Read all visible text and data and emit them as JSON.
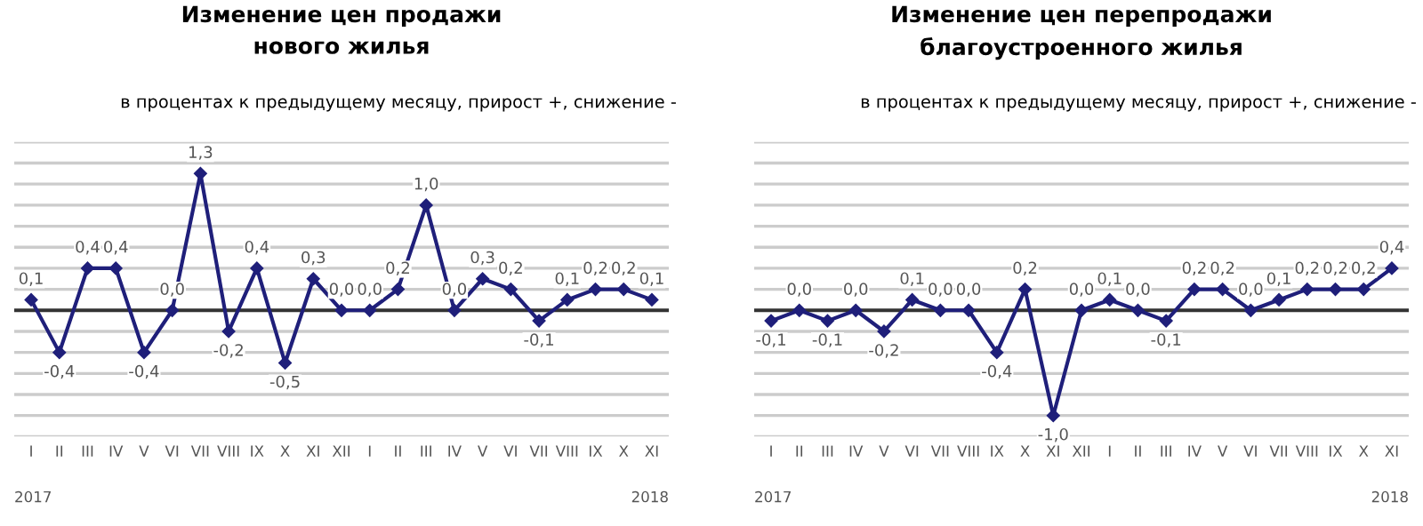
{
  "chart_data": [
    {
      "type": "line",
      "title": "Изменение цен продажи\nнового жилья",
      "subtitle": "в процентах к предыдущему месяцу, прирост +, снижение -",
      "categories": [
        "I",
        "II",
        "III",
        "IV",
        "V",
        "VI",
        "VII",
        "VIII",
        "IX",
        "X",
        "XI",
        "XII",
        "I",
        "II",
        "III",
        "IV",
        "V",
        "VI",
        "VII",
        "VIII",
        "IX",
        "X",
        "XI"
      ],
      "series": [
        {
          "color": "#1f1f7a",
          "values": [
            0.1,
            -0.4,
            0.4,
            0.4,
            -0.4,
            0.0,
            1.3,
            -0.2,
            0.4,
            -0.5,
            0.3,
            0.0,
            0.0,
            0.2,
            1.0,
            0.0,
            0.3,
            0.2,
            -0.1,
            0.1,
            0.2,
            0.2,
            0.1
          ],
          "value_labels": [
            "0,1",
            "-0,4",
            "0,4",
            "0,4",
            "-0,4",
            "0,0",
            "1,3",
            "-0,2",
            "0,4",
            "-0,5",
            "0,3",
            "0,0",
            "0,0",
            "0,2",
            "1,0",
            "0,0",
            "0,3",
            "0,2",
            "-0,1",
            "0,1",
            "0,2",
            "0,2",
            "0,1"
          ]
        }
      ],
      "ylim": [
        -1.2,
        1.6
      ],
      "yticks": [
        {
          "value": -1.2,
          "label": null
        },
        {
          "value": -1.0,
          "label": null
        },
        {
          "value": -0.8,
          "label": null
        },
        {
          "value": -0.6,
          "label": null
        },
        {
          "value": -0.4,
          "label": null
        },
        {
          "value": -0.2,
          "label": null
        },
        {
          "value": 0.2,
          "label": null
        },
        {
          "value": 0.4,
          "label": null
        },
        {
          "value": 0.6,
          "label": null
        },
        {
          "value": 0.8,
          "label": null
        },
        {
          "value": 1.0,
          "label": null
        },
        {
          "value": 1.2,
          "label": null
        },
        {
          "value": 1.4,
          "label": null
        },
        {
          "value": 1.6,
          "label": null
        }
      ],
      "tick_labels": "x",
      "grid": "y",
      "marker": "diamond",
      "line_style": "solid",
      "ref_lines": [
        {
          "axis": "y",
          "value": 0,
          "color": "#333333"
        }
      ],
      "annotations": [
        "2017",
        "2018"
      ]
    },
    {
      "type": "line",
      "title": "Изменение цен перепродажи\nблагоустроенного жилья",
      "subtitle": "в процентах к предыдущему месяцу, прирост +, снижение -",
      "categories": [
        "I",
        "II",
        "III",
        "IV",
        "V",
        "VI",
        "VII",
        "VIII",
        "IX",
        "X",
        "XI",
        "XII",
        "I",
        "II",
        "III",
        "IV",
        "V",
        "VI",
        "VII",
        "VIII",
        "IX",
        "X",
        "XI"
      ],
      "series": [
        {
          "color": "#1f1f7a",
          "values": [
            -0.1,
            0.0,
            -0.1,
            0.0,
            -0.2,
            0.1,
            0.0,
            0.0,
            -0.4,
            0.2,
            -1.0,
            0.0,
            0.1,
            0.0,
            -0.1,
            0.2,
            0.2,
            0.0,
            0.1,
            0.2,
            0.2,
            0.2,
            0.4
          ],
          "value_labels": [
            "-0,1",
            "0,0",
            "-0,1",
            "0,0",
            "-0,2",
            "0,1",
            "0,0",
            "0,0",
            "-0,4",
            "0,2",
            "-1,0",
            "0,0",
            "0,1",
            "0,0",
            "-0,1",
            "0,2",
            "0,2",
            "0,0",
            "0,1",
            "0,2",
            "0,2",
            "0,2",
            "0,4"
          ]
        }
      ],
      "ylim": [
        -1.2,
        1.6
      ],
      "yticks": [
        {
          "value": -1.2,
          "label": null
        },
        {
          "value": -1.0,
          "label": null
        },
        {
          "value": -0.8,
          "label": null
        },
        {
          "value": -0.6,
          "label": null
        },
        {
          "value": -0.4,
          "label": null
        },
        {
          "value": -0.2,
          "label": null
        },
        {
          "value": 0.2,
          "label": null
        },
        {
          "value": 0.4,
          "label": null
        },
        {
          "value": 0.6,
          "label": null
        },
        {
          "value": 0.8,
          "label": null
        },
        {
          "value": 1.0,
          "label": null
        },
        {
          "value": 1.2,
          "label": null
        },
        {
          "value": 1.4,
          "label": null
        },
        {
          "value": 1.6,
          "label": null
        }
      ],
      "tick_labels": "x",
      "grid": "y",
      "marker": "diamond",
      "line_style": "solid",
      "ref_lines": [
        {
          "axis": "y",
          "value": 0,
          "color": "#333333"
        }
      ],
      "annotations": [
        "2017",
        "2018"
      ]
    }
  ]
}
